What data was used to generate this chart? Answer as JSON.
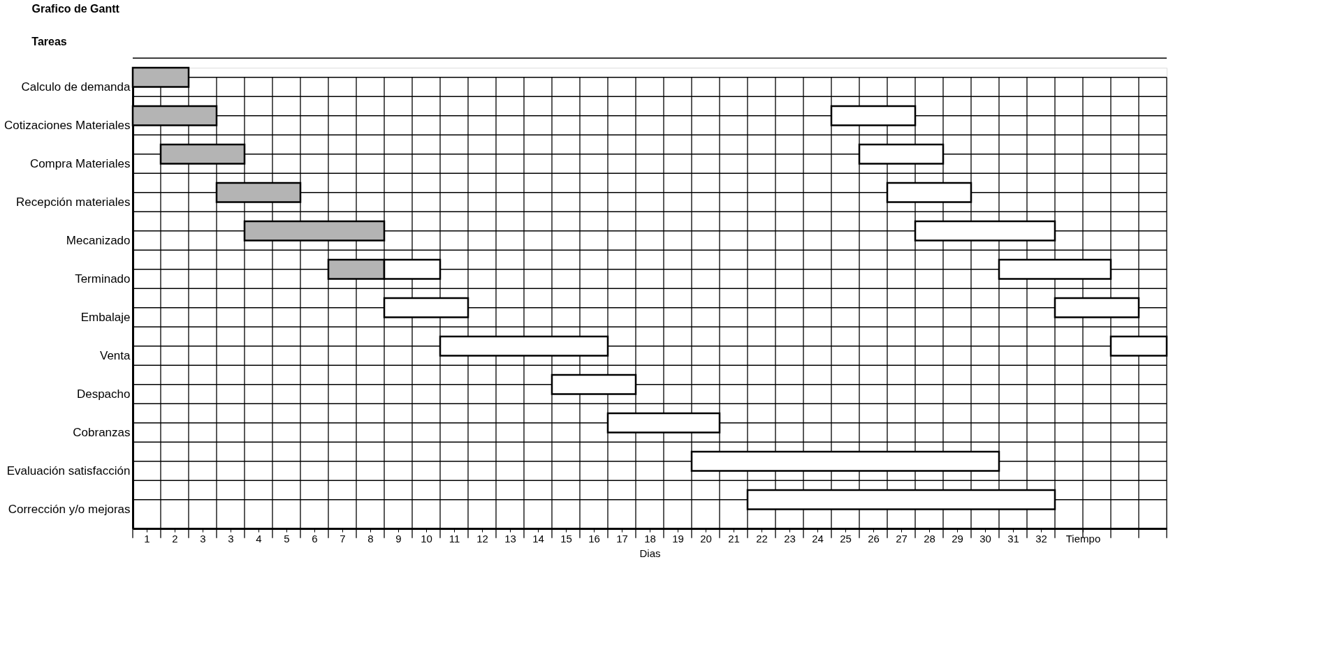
{
  "chart_data": {
    "type": "bar",
    "orientation": "horizontal",
    "title": "Grafico de Gantt",
    "ylabel": "Tareas",
    "xlabel": "Dias",
    "categories": [
      "Calculo de demanda",
      "Cotizaciones Materiales",
      "Compra Materiales",
      "Recepción materiales",
      "Mecanizado",
      "Terminado",
      "Embalaje",
      "Venta",
      "Despacho",
      "Cobranzas",
      "Evaluación satisfacción",
      "Corrección y/o mejoras"
    ],
    "series": [
      {
        "color": "#b4b4b4",
        "base": [
          0,
          0,
          1,
          3,
          4,
          7,
          null,
          null,
          null,
          null,
          null,
          null
        ],
        "values": [
          2,
          3,
          3,
          3,
          5,
          2,
          null,
          null,
          null,
          null,
          null,
          null
        ]
      },
      {
        "color": "#ffffff",
        "base": [
          null,
          25,
          26,
          27,
          28,
          9,
          9,
          11,
          15,
          17,
          20,
          22
        ],
        "values": [
          null,
          3,
          3,
          3,
          5,
          2,
          3,
          6,
          3,
          4,
          11,
          11
        ]
      },
      {
        "color": "#ffffff",
        "base": [
          null,
          null,
          null,
          null,
          null,
          31,
          33,
          35,
          null,
          null,
          null,
          null
        ],
        "values": [
          null,
          null,
          null,
          null,
          null,
          4,
          3,
          2,
          null,
          null,
          null,
          null
        ]
      }
    ],
    "xlim": [
      0,
      37
    ],
    "xticks": [
      {
        "value": 0.5,
        "label": "1"
      },
      {
        "value": 1.5,
        "label": "2"
      },
      {
        "value": 2.5,
        "label": "3"
      },
      {
        "value": 3.5,
        "label": "3"
      },
      {
        "value": 4.5,
        "label": "4"
      },
      {
        "value": 5.5,
        "label": "5"
      },
      {
        "value": 6.5,
        "label": "6"
      },
      {
        "value": 7.5,
        "label": "7"
      },
      {
        "value": 8.5,
        "label": "8"
      },
      {
        "value": 9.5,
        "label": "9"
      },
      {
        "value": 10.5,
        "label": "10"
      },
      {
        "value": 11.5,
        "label": "11"
      },
      {
        "value": 12.5,
        "label": "12"
      },
      {
        "value": 13.5,
        "label": "13"
      },
      {
        "value": 14.5,
        "label": "14"
      },
      {
        "value": 15.5,
        "label": "15"
      },
      {
        "value": 16.5,
        "label": "16"
      },
      {
        "value": 17.5,
        "label": "17"
      },
      {
        "value": 18.5,
        "label": "18"
      },
      {
        "value": 19.5,
        "label": "19"
      },
      {
        "value": 20.5,
        "label": "20"
      },
      {
        "value": 21.5,
        "label": "21"
      },
      {
        "value": 22.5,
        "label": "22"
      },
      {
        "value": 23.5,
        "label": "23"
      },
      {
        "value": 24.5,
        "label": "24"
      },
      {
        "value": 25.5,
        "label": "25"
      },
      {
        "value": 26.5,
        "label": "26"
      },
      {
        "value": 27.5,
        "label": "27"
      },
      {
        "value": 28.5,
        "label": "28"
      },
      {
        "value": 29.5,
        "label": "29"
      },
      {
        "value": 30.5,
        "label": "30"
      },
      {
        "value": 31.5,
        "label": "31"
      },
      {
        "value": 32.5,
        "label": "32"
      },
      {
        "value": 34,
        "label": "Tiempo"
      }
    ],
    "grid": true
  }
}
